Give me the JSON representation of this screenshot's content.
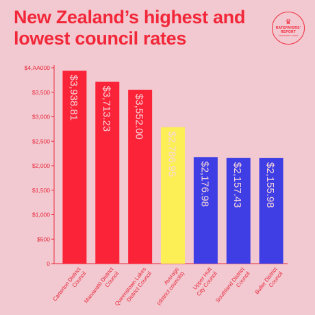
{
  "header": {
    "title": "New Zealand’s highest and lowest council rates"
  },
  "logo": {
    "line1": "RATEPAYERS’",
    "line2": "REPORT",
    "tagline": "TAXPAYERS’ UNION"
  },
  "colors": {
    "background": "#f2c9d0",
    "title": "#f2283a",
    "axis": "#e8253a",
    "high": "#fb2338",
    "average": "#fbef55",
    "low": "#3e3ee4",
    "bar_label": "#f7d6db"
  },
  "chart_data": {
    "type": "bar",
    "title": "New Zealand’s highest and lowest council rates",
    "xlabel": "",
    "ylabel": "",
    "ylim": [
      0,
      4000
    ],
    "grid": false,
    "yticks": [
      0,
      500,
      1000,
      1500,
      2000,
      2500,
      3000,
      3500,
      4000
    ],
    "ytick_labels": [
      "0",
      "$500",
      "$1,000",
      "$1,500",
      "$2,000",
      "$2,500",
      "$3,000",
      "$3,500",
      "$4,AA000"
    ],
    "categories": [
      [
        "Carterton District",
        "Council"
      ],
      [
        "Manawatū District",
        "Council"
      ],
      [
        "Queenstown Lakes",
        "District Council"
      ],
      [
        "Average",
        "(district councils)"
      ],
      [
        "Upper Hutt",
        "City Council"
      ],
      [
        "Southland District",
        "Council"
      ],
      [
        "Buller District",
        "Council"
      ]
    ],
    "values": [
      3938.81,
      3713.23,
      3552.0,
      2786.95,
      2176.98,
      2157.43,
      2155.98
    ],
    "value_labels": [
      "$3,938.81",
      "$3,713.23",
      "$3,552.00",
      "$2,786.95",
      "$2,176.98",
      "$2,157.43",
      "$2,155.98"
    ],
    "bar_colors": [
      "#fb2338",
      "#fb2338",
      "#fb2338",
      "#fbef55",
      "#3e3ee4",
      "#3e3ee4",
      "#3e3ee4"
    ]
  }
}
